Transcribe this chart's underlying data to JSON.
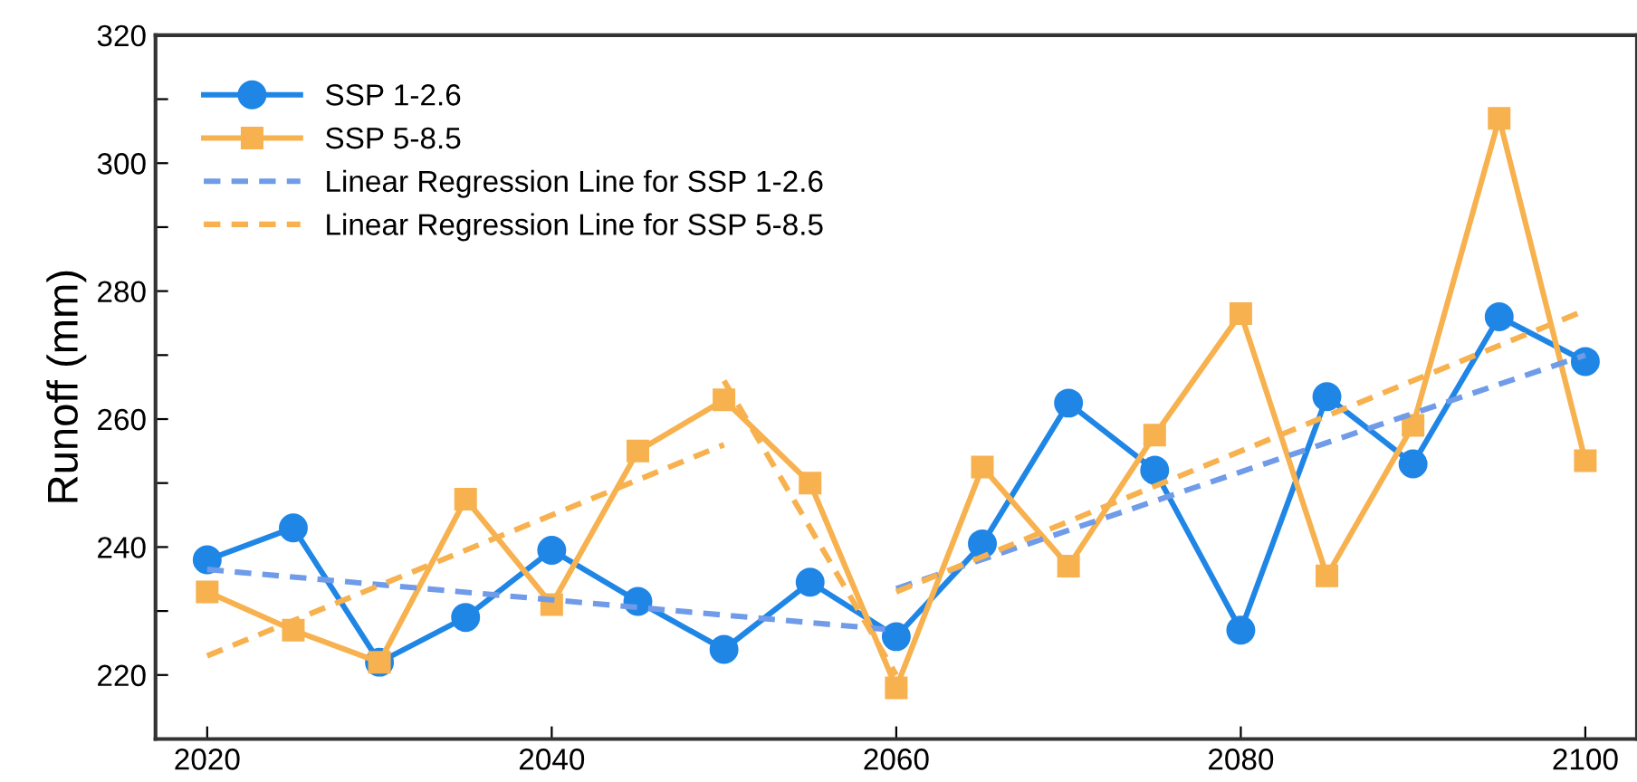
{
  "chart_data": {
    "type": "line",
    "ylabel": "Runoff (mm)",
    "x": [
      2020,
      2025,
      2030,
      2035,
      2040,
      2045,
      2050,
      2055,
      2060,
      2065,
      2070,
      2075,
      2080,
      2085,
      2090,
      2095,
      2100
    ],
    "series": [
      {
        "name": "SSP 1-2.6",
        "color": "#1f86e6",
        "marker": "circle",
        "line_style": "solid",
        "values": [
          238,
          243,
          222,
          229,
          239.5,
          231.5,
          224,
          234.5,
          226,
          240.5,
          262.5,
          252,
          227,
          263.5,
          253,
          276,
          269
        ]
      },
      {
        "name": "SSP 5-8.5",
        "color": "#f7b14e",
        "marker": "square",
        "line_style": "solid",
        "values": [
          233,
          227,
          222,
          247.5,
          231,
          255,
          263,
          250,
          218,
          252.5,
          237,
          257.5,
          276.5,
          235.5,
          259,
          307,
          253.5
        ]
      },
      {
        "name": "Linear Regression Line for SSP 1-2.6",
        "color": "#6f9be8",
        "marker": "none",
        "line_style": "dashed",
        "x": [
          2020,
          2060
        ],
        "values": [
          236.5,
          227
        ]
      },
      {
        "name": "Linear Regression Line for SSP 5-8.5",
        "color": "#f7b14e",
        "marker": "none",
        "line_style": "dashed",
        "x": [
          2020,
          2050
        ],
        "values": [
          223,
          256
        ]
      },
      {
        "color": "#6f9be8",
        "marker": "none",
        "line_style": "dashed",
        "x": [
          2060,
          2100
        ],
        "values": [
          233.5,
          270
        ]
      },
      {
        "color": "#f7b14e",
        "marker": "none",
        "line_style": "dashed",
        "x": [
          2050,
          2060
        ],
        "values": [
          266,
          220
        ]
      },
      {
        "color": "#f7b14e",
        "marker": "none",
        "line_style": "dashed",
        "x": [
          2060,
          2100
        ],
        "values": [
          233,
          277
        ]
      }
    ],
    "xlim": [
      2017,
      2103
    ],
    "xticks": [
      2020,
      2040,
      2060,
      2080,
      2100
    ],
    "ylim": [
      210,
      320
    ],
    "yticks": [
      220,
      {
        "value": 230,
        "label": null
      },
      240,
      {
        "value": 250,
        "label": null
      },
      260,
      {
        "value": 270,
        "label": null
      },
      280,
      {
        "value": 290,
        "label": null
      },
      300,
      {
        "value": 310,
        "label": null
      },
      320
    ],
    "grid": false,
    "legend": "top left"
  }
}
